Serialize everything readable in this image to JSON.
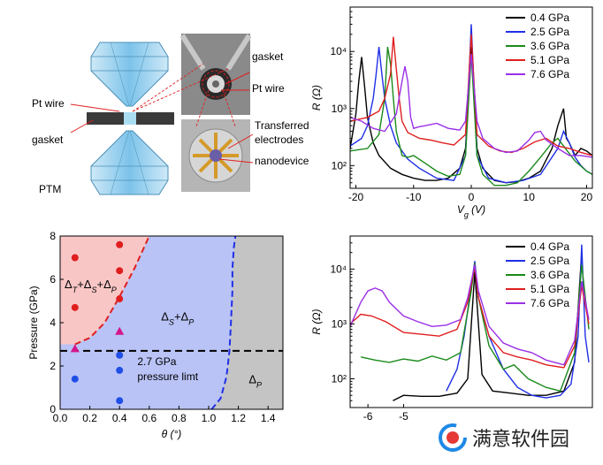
{
  "panel_a": {
    "labels": {
      "pt_wire_left": "Pt wire",
      "gasket_left": "gasket",
      "ptm": "PTM",
      "gasket_right": "gasket",
      "pt_wire_right": "Pt wire",
      "transferred": "Transferred",
      "electrodes": "electrodes",
      "nanodevice": "nanodevice"
    }
  },
  "watermark": {
    "text": "满意软件园"
  },
  "chart_data": [
    {
      "id": "top_right",
      "type": "line",
      "title": "",
      "xlabel": "V_g (V)",
      "ylabel": "R (Ω)",
      "yscale": "log",
      "xlim": [
        -21,
        21
      ],
      "ylim": [
        40,
        60000
      ],
      "xticks": [
        -20,
        -10,
        0,
        10,
        20
      ],
      "yticks": [
        100,
        1000,
        10000
      ],
      "ytick_labels": [
        "10²",
        "10³",
        "10⁴"
      ],
      "legend_position": "top-right",
      "series": [
        {
          "name": "0.4 GPa",
          "color": "#000000",
          "x": [
            -21,
            -20,
            -19.5,
            -19,
            -18.5,
            -18,
            -17,
            -16,
            -14,
            -12,
            -10,
            -8,
            -6,
            -4,
            -2,
            -1,
            0,
            1,
            2,
            4,
            6,
            8,
            10,
            12,
            14,
            15,
            16,
            16.5,
            17,
            18,
            19,
            20,
            21
          ],
          "y": [
            200,
            800,
            3000,
            8000,
            2500,
            700,
            250,
            150,
            90,
            70,
            60,
            55,
            55,
            60,
            90,
            200,
            12000,
            200,
            90,
            55,
            50,
            52,
            60,
            80,
            200,
            500,
            1000,
            300,
            250,
            150,
            200,
            180,
            150
          ]
        },
        {
          "name": "2.5 GPa",
          "color": "#1f2fe6",
          "x": [
            -21,
            -19,
            -18,
            -17,
            -16.5,
            -16,
            -15.5,
            -15,
            -14,
            -13,
            -11,
            -9,
            -6,
            -3,
            -1,
            0,
            1,
            3,
            6,
            9,
            12,
            15,
            16,
            17,
            18,
            19,
            20,
            21
          ],
          "y": [
            220,
            300,
            500,
            1500,
            4000,
            12000,
            4000,
            1500,
            500,
            250,
            130,
            90,
            60,
            55,
            150,
            30000,
            150,
            60,
            50,
            55,
            70,
            200,
            400,
            250,
            140,
            100,
            80,
            70
          ]
        },
        {
          "name": "3.6 GPa",
          "color": "#1a8a1a",
          "x": [
            -21,
            -18,
            -16,
            -15,
            -14.5,
            -14,
            -13.5,
            -13,
            -12,
            -11,
            -10,
            -8,
            -6,
            -4,
            -2,
            -1,
            0,
            1,
            2,
            4,
            6,
            8,
            10,
            12,
            14,
            15,
            16,
            18,
            20,
            21
          ],
          "y": [
            180,
            200,
            350,
            1500,
            12000,
            6000,
            1500,
            400,
            150,
            140,
            150,
            110,
            80,
            65,
            70,
            150,
            9000,
            150,
            70,
            45,
            45,
            50,
            80,
            140,
            250,
            300,
            220,
            120,
            80,
            70
          ]
        },
        {
          "name": "5.1 GPa",
          "color": "#e01e1e",
          "x": [
            -21,
            -18,
            -16,
            -15,
            -14,
            -13.5,
            -13,
            -12.5,
            -12,
            -11,
            -9,
            -7,
            -5,
            -3,
            -1,
            0,
            1,
            3,
            5,
            7,
            9,
            11,
            13,
            15,
            17,
            19,
            21
          ],
          "y": [
            600,
            700,
            900,
            1500,
            4000,
            18000,
            5000,
            1500,
            600,
            380,
            300,
            280,
            250,
            230,
            350,
            20000,
            350,
            220,
            180,
            170,
            200,
            260,
            300,
            220,
            200,
            170,
            150
          ]
        },
        {
          "name": "7.6 GPa",
          "color": "#9b30e6",
          "x": [
            -21,
            -19,
            -17,
            -15,
            -13,
            -12,
            -11.5,
            -11,
            -10.5,
            -10,
            -9,
            -8,
            -6,
            -4,
            -2,
            -1,
            0,
            1,
            2,
            4,
            6,
            8,
            10,
            11,
            12,
            13,
            15,
            17,
            19,
            21
          ],
          "y": [
            700,
            600,
            450,
            400,
            800,
            3000,
            5500,
            3000,
            700,
            450,
            480,
            500,
            550,
            450,
            420,
            600,
            9000,
            600,
            300,
            200,
            170,
            180,
            280,
            380,
            400,
            280,
            200,
            150,
            150,
            140
          ]
        }
      ]
    },
    {
      "id": "bottom_left",
      "type": "scatter",
      "title": "",
      "xlabel": "θ (°)",
      "ylabel": "Pressure (GPa)",
      "xlim": [
        0,
        1.5
      ],
      "ylim": [
        0,
        8
      ],
      "xticks": [
        0.0,
        0.2,
        0.4,
        0.6,
        0.8,
        1.0,
        1.2,
        1.4
      ],
      "xtick_labels": [
        "0.0",
        "0.2",
        "0.4",
        "0.6",
        "0.8",
        "1.0",
        "1.2",
        "1.4"
      ],
      "yticks": [
        0,
        2,
        4,
        6,
        8
      ],
      "region_colors": {
        "red": "#f9c6c6",
        "blue": "#b9c3f6",
        "gray": "#c4c4c4"
      },
      "region_labels": {
        "top_left": "Δ_T+Δ_S+Δ_P",
        "middle": "Δ_S+Δ_P",
        "right": "Δ_P"
      },
      "threshold": {
        "y": 2.7,
        "label_line1": "2.7 GPa",
        "label_line2": "pressure limt"
      },
      "red_boundary": {
        "color": "#e01e1e",
        "x": [
          0.1,
          0.2,
          0.3,
          0.4,
          0.5,
          0.6
        ],
        "y": [
          3.0,
          3.3,
          4.0,
          5.2,
          6.5,
          8.0
        ]
      },
      "blue_boundary": {
        "color": "#1f2fe6",
        "x": [
          1.02,
          1.08,
          1.12,
          1.14,
          1.15,
          1.16,
          1.16,
          1.17,
          1.18
        ],
        "y": [
          0,
          0.5,
          1.5,
          2.7,
          4.0,
          5.5,
          6.5,
          7.5,
          8.0
        ]
      },
      "points": [
        {
          "x": 0.1,
          "y": 1.4,
          "marker": "circle",
          "color": "#1f4fe6"
        },
        {
          "x": 0.1,
          "y": 2.8,
          "marker": "triangle",
          "color": "#d4168a"
        },
        {
          "x": 0.1,
          "y": 4.7,
          "marker": "circle",
          "color": "#e01e1e"
        },
        {
          "x": 0.1,
          "y": 7.0,
          "marker": "circle",
          "color": "#e01e1e"
        },
        {
          "x": 0.4,
          "y": 0.4,
          "marker": "circle",
          "color": "#1f4fe6"
        },
        {
          "x": 0.4,
          "y": 1.8,
          "marker": "circle",
          "color": "#1f4fe6"
        },
        {
          "x": 0.4,
          "y": 2.5,
          "marker": "circle",
          "color": "#1f4fe6"
        },
        {
          "x": 0.4,
          "y": 3.6,
          "marker": "triangle",
          "color": "#d4168a"
        },
        {
          "x": 0.4,
          "y": 5.1,
          "marker": "circle",
          "color": "#e01e1e"
        },
        {
          "x": 0.4,
          "y": 6.4,
          "marker": "circle",
          "color": "#e01e1e"
        },
        {
          "x": 0.4,
          "y": 7.6,
          "marker": "circle",
          "color": "#e01e1e"
        }
      ]
    },
    {
      "id": "bottom_right",
      "type": "line",
      "title": "",
      "xlabel": "",
      "ylabel": "R (Ω)",
      "yscale": "log",
      "xlim": [
        -6.5,
        0.3
      ],
      "ylim": [
        30,
        40000
      ],
      "xticks": [
        -6,
        -5
      ],
      "xtick_labels": [
        "-6",
        "-5"
      ],
      "yticks": [
        100,
        1000,
        10000
      ],
      "ytick_labels": [
        "10²",
        "10³",
        "10⁴"
      ],
      "legend_position": "top-right",
      "series": [
        {
          "name": "0.4 GPa",
          "color": "#000000",
          "x": [
            -5.3,
            -5,
            -4.5,
            -4,
            -3.5,
            -3.2,
            -3,
            -2.8,
            -2.5,
            -2,
            -1.5,
            -1,
            -0.5,
            -0.2,
            0
          ],
          "y": [
            40,
            50,
            48,
            48,
            55,
            100,
            9000,
            120,
            60,
            55,
            50,
            50,
            60,
            200,
            20000
          ]
        },
        {
          "name": "2.5 GPa",
          "color": "#1f2fe6",
          "x": [
            -3.8,
            -3.5,
            -3.3,
            -3.1,
            -3,
            -2.9,
            -2.6,
            -2.2,
            -1.8,
            -1.4,
            -1,
            -0.6,
            -0.3,
            -0.1,
            0,
            0.1,
            0.2
          ],
          "y": [
            60,
            150,
            600,
            5000,
            14000,
            3000,
            600,
            150,
            70,
            50,
            45,
            50,
            80,
            600,
            28000,
            600,
            200
          ]
        },
        {
          "name": "3.6 GPa",
          "color": "#1a8a1a",
          "x": [
            -6.2,
            -5.8,
            -5.4,
            -5,
            -4.6,
            -4.2,
            -3.8,
            -3.4,
            -3.1,
            -3,
            -2.9,
            -2.6,
            -2.2,
            -1.9,
            -1.5,
            -1,
            -0.6,
            -0.2,
            0,
            0.2
          ],
          "y": [
            250,
            220,
            200,
            230,
            210,
            260,
            220,
            300,
            4000,
            13000,
            3000,
            400,
            150,
            180,
            100,
            70,
            60,
            300,
            12000,
            800
          ]
        },
        {
          "name": "5.1 GPa",
          "color": "#e01e1e",
          "x": [
            -6.5,
            -6.2,
            -5.9,
            -5.5,
            -5,
            -4.5,
            -4,
            -3.5,
            -3.2,
            -3,
            -2.9,
            -2.6,
            -2.2,
            -1.8,
            -1.4,
            -1,
            -0.5,
            -0.2,
            0,
            0.2
          ],
          "y": [
            1000,
            1500,
            1400,
            1100,
            700,
            650,
            600,
            800,
            2500,
            11000,
            3000,
            600,
            300,
            250,
            220,
            180,
            160,
            400,
            5000,
            1000
          ]
        },
        {
          "name": "7.6 GPa",
          "color": "#9b30e6",
          "x": [
            -6.5,
            -6.2,
            -6,
            -5.8,
            -5.6,
            -5.4,
            -5,
            -4.6,
            -4.2,
            -3.8,
            -3.4,
            -3.2,
            -3,
            -2.9,
            -2.6,
            -2.2,
            -1.8,
            -1.4,
            -1,
            -0.5,
            -0.2,
            0,
            0.2
          ],
          "y": [
            900,
            2500,
            4000,
            4500,
            4000,
            2500,
            1400,
            1100,
            900,
            950,
            1200,
            3000,
            12000,
            4000,
            900,
            450,
            350,
            300,
            220,
            180,
            500,
            6000,
            1200
          ]
        }
      ]
    }
  ]
}
